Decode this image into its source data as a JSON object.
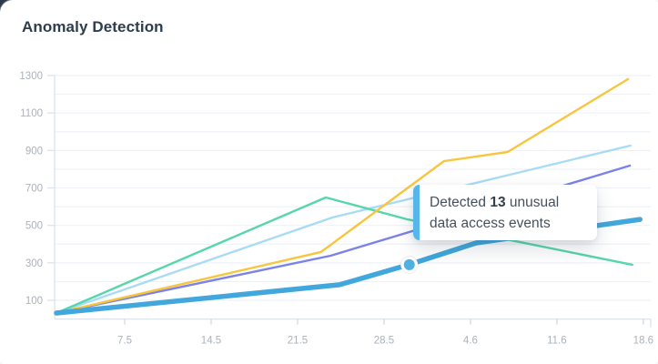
{
  "card": {
    "title": "Anomaly Detection"
  },
  "tooltip": {
    "prefix": "Detected ",
    "count": "13",
    "suffix": " unusual data access events"
  },
  "colors": {
    "corner_background": "#2b3948",
    "title_text": "#2e3d4c",
    "gridline": "#eef2f7",
    "axis_line": "#dce3ed",
    "tick_mark": "#d2d9e3",
    "axis_label_text": "#a9b2bd",
    "tooltip_accent": "#58b7ea",
    "tooltip_text": "#46515d",
    "marker_fill": "#4fb0e2",
    "marker_ring": "#ffffff"
  },
  "chart_data": {
    "type": "line",
    "title": "Anomaly Detection",
    "xlabel": "",
    "ylabel": "",
    "grid": true,
    "legend": "none",
    "x_tick_labels": [
      "7.5",
      "14.5",
      "21.5",
      "28.5",
      "4.6",
      "11.6",
      "18.6"
    ],
    "y_tick_labels": [
      "1300",
      "1100",
      "900",
      "700",
      "500",
      "300",
      "100"
    ],
    "y_axis_max": 1300,
    "y_axis_min": 0,
    "gridline_step": 100,
    "annotation": "Detected 13 unusual data access events",
    "series": [
      {
        "name": "pale-blue-series",
        "color": "#a8dbf5",
        "width": 2.4,
        "points": [
          [
            0.3,
            32
          ],
          [
            46.6,
            542
          ],
          [
            96.6,
            926
          ]
        ]
      },
      {
        "name": "teal-series",
        "color": "#56d6a9",
        "width": 2.4,
        "points": [
          [
            0.3,
            32
          ],
          [
            45.5,
            649
          ],
          [
            59.2,
            532
          ],
          [
            96.9,
            290
          ]
        ]
      },
      {
        "name": "purple-series",
        "color": "#7b82e8",
        "width": 2.4,
        "points": [
          [
            0.3,
            32
          ],
          [
            46.3,
            338
          ],
          [
            96.5,
            819
          ]
        ]
      },
      {
        "name": "yellow-series",
        "color": "#f8c63e",
        "width": 2.4,
        "points": [
          [
            0.3,
            32
          ],
          [
            44.7,
            358
          ],
          [
            65.3,
            843
          ],
          [
            76.0,
            892
          ],
          [
            96.2,
            1281
          ]
        ]
      },
      {
        "name": "highlighted-blue-series",
        "color": "#41a7dc",
        "width": 5.5,
        "points": [
          [
            0.3,
            32
          ],
          [
            47.8,
            183
          ],
          [
            59.4,
            290
          ],
          [
            70.7,
            406
          ],
          [
            98.2,
            532
          ]
        ]
      }
    ],
    "marker": {
      "x": 59.5,
      "value": 290,
      "outer_radius": 9.5,
      "inner_radius": 6
    }
  }
}
